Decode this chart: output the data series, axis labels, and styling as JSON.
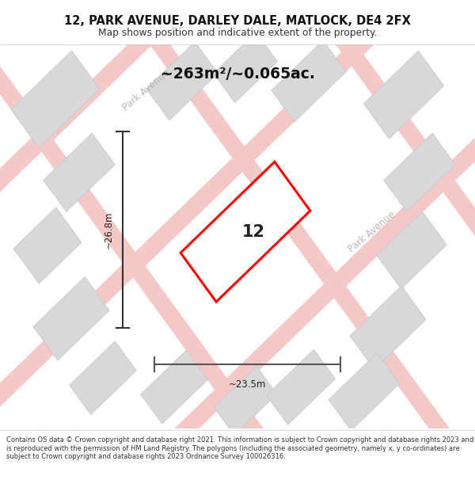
{
  "title": "12, PARK AVENUE, DARLEY DALE, MATLOCK, DE4 2FX",
  "subtitle": "Map shows position and indicative extent of the property.",
  "area_text": "~263m²/~0.065ac.",
  "label_12": "12",
  "dim_width": "~23.5m",
  "dim_height": "~26.8m",
  "footer": "Contains OS data © Crown copyright and database right 2021. This information is subject to Crown copyright and database rights 2023 and is reproduced with the permission of HM Land Registry. The polygons (including the associated geometry, namely x, y co-ordinates) are subject to Crown copyright and database rights 2023 Ordnance Survey 100026316.",
  "bg_color": "#f2f2f2",
  "map_bg": "#efefef",
  "plot_color": "#ff0000",
  "road_color": "#f5c8c8",
  "building_color": "#d8d8d8",
  "building_edge": "#c8c8c8",
  "road_label_color": "#b8b8b8",
  "park_avenue_label1": "Park Avenue",
  "park_avenue_label2": "Park Avenue"
}
